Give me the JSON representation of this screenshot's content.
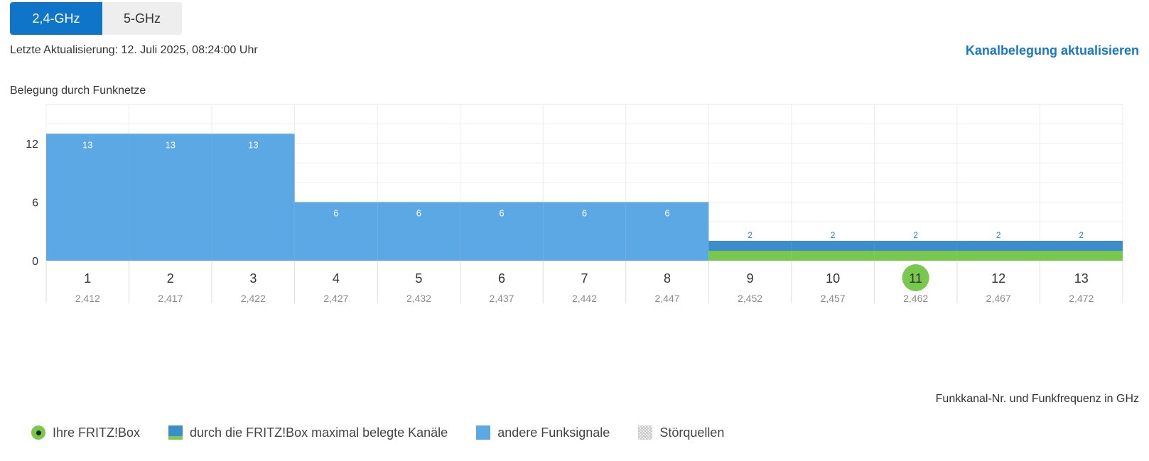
{
  "tabs": [
    {
      "label": "2,4-GHz",
      "active": true
    },
    {
      "label": "5-GHz",
      "active": false
    }
  ],
  "last_update": "Letzte Aktualisierung: 12. Juli 2025, 08:24:00 Uhr",
  "refresh_link": "Kanalbelegung aktualisieren",
  "section_label": "Belegung durch Funknetze",
  "axis_caption": "Funkkanal-Nr. und Funkfrequenz in GHz",
  "legend": {
    "own": "Ihre FRITZ!Box",
    "max": "durch die FRITZ!Box maximal belegte Kanäle",
    "other": "andere Funksignale",
    "noise": "Störquellen"
  },
  "colors": {
    "accent": "#0f75c9",
    "other_signals": "#5ca8e4",
    "own_max_channels": "#3d8ccc",
    "own_box": "#78c850"
  },
  "chart_data": {
    "type": "bar",
    "categories": [
      "1",
      "2",
      "3",
      "4",
      "5",
      "6",
      "7",
      "8",
      "9",
      "10",
      "11",
      "12",
      "13"
    ],
    "frequencies": [
      "2,412",
      "2,417",
      "2,422",
      "2,427",
      "2,432",
      "2,437",
      "2,442",
      "2,447",
      "2,452",
      "2,457",
      "2,462",
      "2,467",
      "2,472"
    ],
    "values": [
      13,
      13,
      13,
      6,
      6,
      6,
      6,
      6,
      2,
      2,
      2,
      2,
      2
    ],
    "own_channel": "11",
    "own_max_channels": [
      "9",
      "10",
      "11",
      "12",
      "13"
    ],
    "y_ticks": [
      0,
      6,
      12
    ],
    "ylim": [
      0,
      16
    ],
    "grid": true
  }
}
